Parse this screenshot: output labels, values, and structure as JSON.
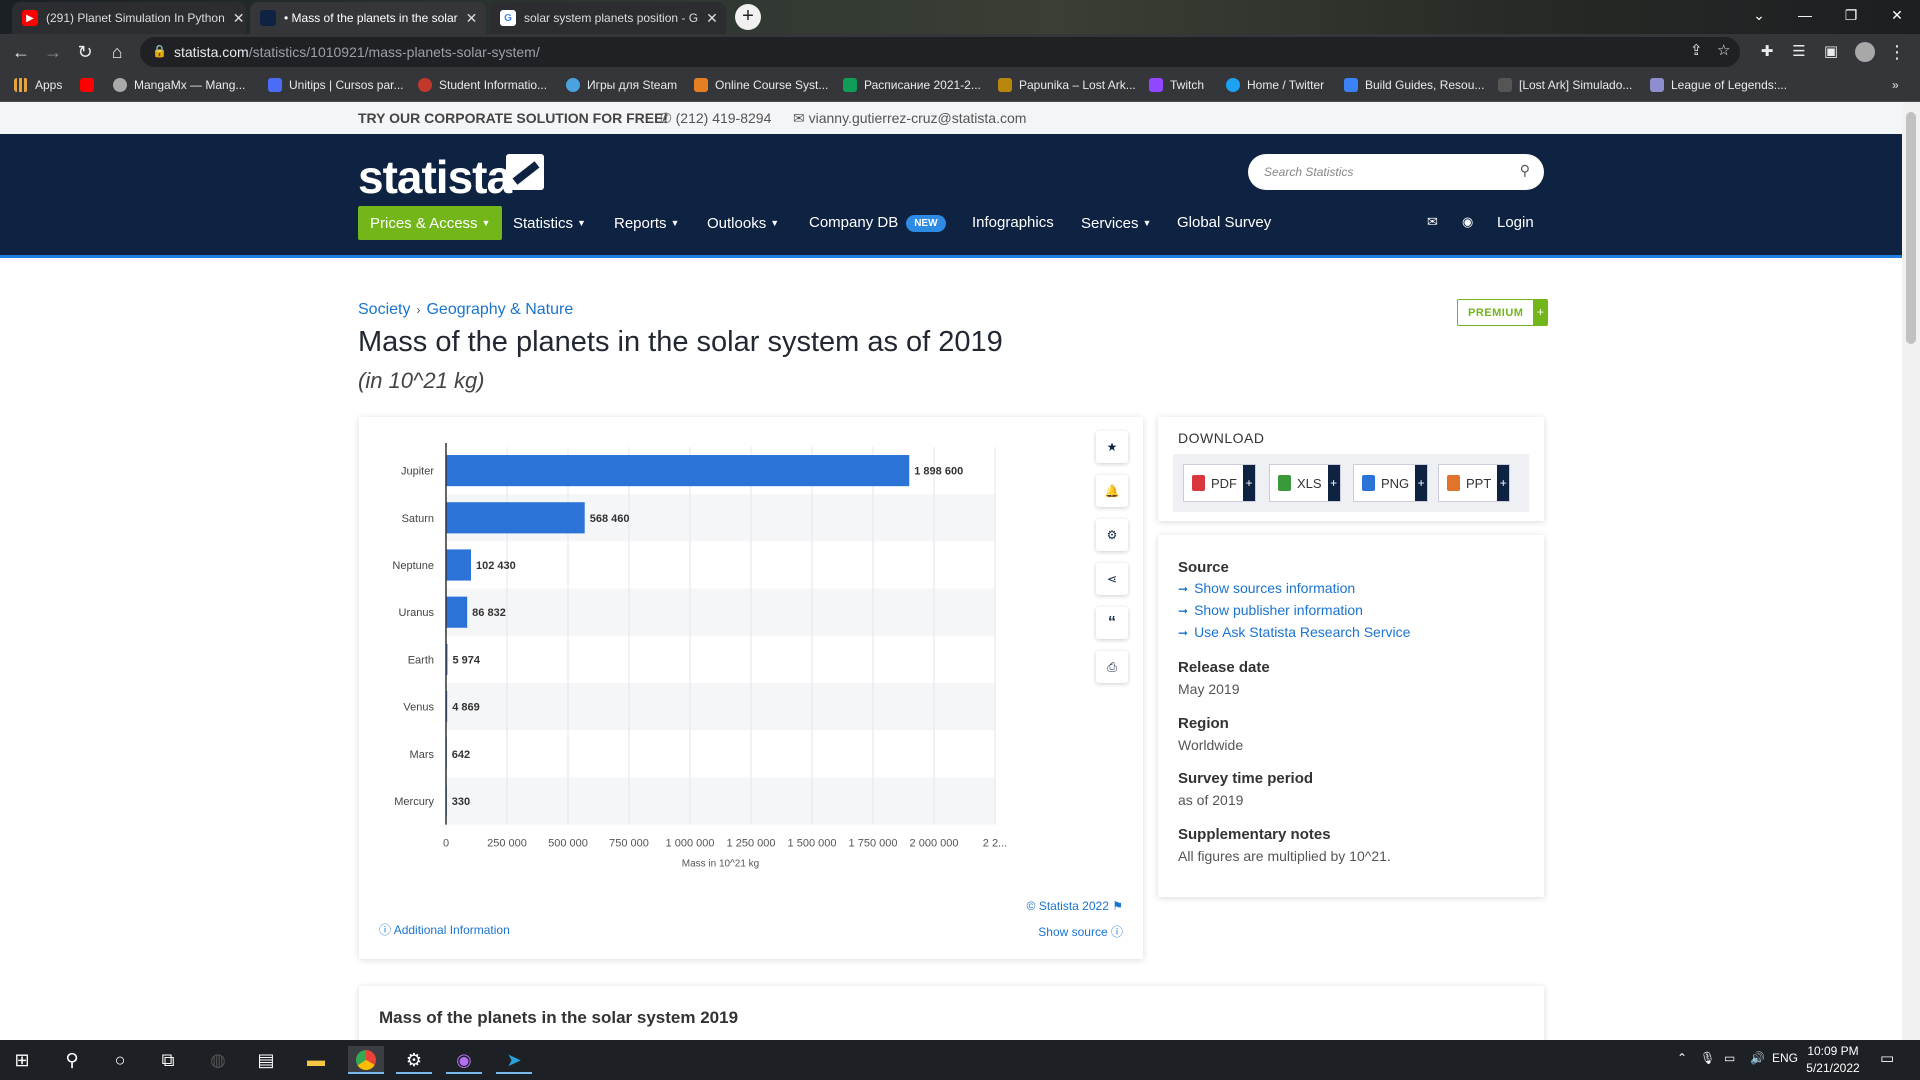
{
  "browser": {
    "tabs": [
      {
        "title": "(291) Planet Simulation In Python",
        "favicon_color": "#ff0000",
        "active": false
      },
      {
        "title": "• Mass of the planets in the solar",
        "favicon_color": "#0e2242",
        "active": true
      },
      {
        "title": "solar system planets position - G",
        "favicon_color": "#4285f4",
        "active": false
      }
    ],
    "url_domain": "statista.com",
    "url_path": "/statistics/1010921/mass-planets-solar-system/",
    "bookmarks": [
      {
        "label": "Apps",
        "color": "#e8a33d"
      },
      {
        "label": "",
        "color": "#ff0000"
      },
      {
        "label": "MangaMx — Mang...",
        "color": "#aaaaaa"
      },
      {
        "label": "Unitips | Cursos par...",
        "color": "#4a6cf7"
      },
      {
        "label": "Student Informatio...",
        "color": "#c0392b"
      },
      {
        "label": "Игры для Steam",
        "color": "#4aa3df"
      },
      {
        "label": "Online Course Syst...",
        "color": "#e67e22"
      },
      {
        "label": "Расписание 2021-2...",
        "color": "#0f9d58"
      },
      {
        "label": "Papunika – Lost Ark...",
        "color": "#b8860b"
      },
      {
        "label": "Twitch",
        "color": "#9146ff"
      },
      {
        "label": "Home / Twitter",
        "color": "#1da1f2"
      },
      {
        "label": "Build Guides, Resou...",
        "color": "#3b82f6"
      },
      {
        "label": "[Lost Ark] Simulado...",
        "color": "#555555"
      },
      {
        "label": "League of Legends:...",
        "color": "#8e8ecf"
      }
    ],
    "bookmarks_overflow": "»"
  },
  "topbar": {
    "cta": "TRY OUR CORPORATE SOLUTION FOR FREE!",
    "phone": "(212) 419-8294",
    "email": "vianny.gutierrez-cruz@statista.com"
  },
  "header": {
    "logo": "statista",
    "search_placeholder": "Search Statistics",
    "nav": [
      {
        "label": "Prices & Access",
        "dropdown": true
      },
      {
        "label": "Statistics",
        "dropdown": true
      },
      {
        "label": "Reports",
        "dropdown": true
      },
      {
        "label": "Outlooks",
        "dropdown": true
      },
      {
        "label": "Company DB",
        "badge": "NEW"
      },
      {
        "label": "Infographics"
      },
      {
        "label": "Services",
        "dropdown": true
      },
      {
        "label": "Global Survey"
      }
    ],
    "login": "Login"
  },
  "breadcrumb": [
    "Society",
    "Geography & Nature"
  ],
  "premium": "PREMIUM",
  "page_title": "Mass of the planets in the solar system as of 2019",
  "page_subtitle": "(in 10^21 kg)",
  "chart_data": {
    "type": "bar",
    "orientation": "horizontal",
    "categories": [
      "Jupiter",
      "Saturn",
      "Neptune",
      "Uranus",
      "Earth",
      "Venus",
      "Mars",
      "Mercury"
    ],
    "values": [
      1898600,
      568460,
      102430,
      86832,
      5974,
      4869,
      642,
      330
    ],
    "value_labels": [
      "1 898 600",
      "568 460",
      "102 430",
      "86 832",
      "5 974",
      "4 869",
      "642",
      "330"
    ],
    "xlabel": "Mass in 10^21 kg",
    "xticks": [
      0,
      250000,
      500000,
      750000,
      1000000,
      1250000,
      1500000,
      1750000,
      2000000,
      2250000
    ],
    "xtick_labels": [
      "0",
      "250 000",
      "500 000",
      "750 000",
      "1 000 000",
      "1 250 000",
      "1 500 000",
      "1 750 000",
      "2 000 000",
      "2 2..."
    ],
    "xlim": [
      0,
      2250000
    ],
    "bar_color": "#2c73d8",
    "grid": true
  },
  "chart_footer": {
    "copyright": "© Statista 2022",
    "show_source": "Show source",
    "additional_info": "Additional Information"
  },
  "download": {
    "heading": "DOWNLOAD",
    "formats": [
      {
        "label": "PDF",
        "color": "#d9363e"
      },
      {
        "label": "XLS",
        "color": "#3a9a3a"
      },
      {
        "label": "PNG",
        "color": "#2c73d8"
      },
      {
        "label": "PPT",
        "color": "#e0742a"
      }
    ]
  },
  "info": {
    "source_heading": "Source",
    "source_links": [
      "Show sources information",
      "Show publisher information",
      "Use Ask Statista Research Service"
    ],
    "release_heading": "Release date",
    "release_value": "May 2019",
    "region_heading": "Region",
    "region_value": "Worldwide",
    "period_heading": "Survey time period",
    "period_value": "as of 2019",
    "notes_heading": "Supplementary notes",
    "notes_value": "All figures are multiplied by 10^21."
  },
  "bottom_title": "Mass of the planets in the solar system 2019",
  "taskbar": {
    "lang": "ENG",
    "time": "10:09 PM",
    "date": "5/21/2022"
  }
}
